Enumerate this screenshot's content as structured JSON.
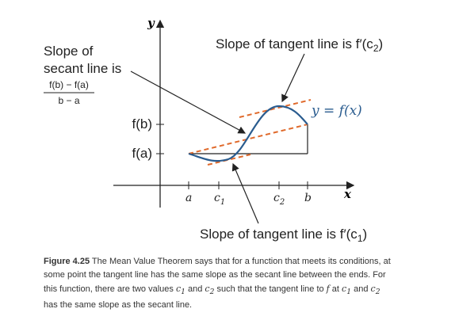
{
  "axes": {
    "x_label": "x",
    "y_label": "y"
  },
  "x_ticks": [
    [
      "a"
    ],
    [
      "c",
      "1"
    ],
    [
      "c",
      "2"
    ],
    [
      "b"
    ]
  ],
  "y_ticks": [
    "f(b)",
    "f(a)"
  ],
  "curve_label": "y = f(x)",
  "secant_note": {
    "line1": "Slope of",
    "line2": "secant line is",
    "numerator": "f(b) − f(a)",
    "denominator": "b − a"
  },
  "tangent_note_top": [
    "Slope of tangent line is f′(c",
    "2",
    ")"
  ],
  "tangent_note_bottom": [
    "Slope of tangent line is f′(c",
    "1",
    ")"
  ],
  "caption": [
    "Figure 4.25",
    " The Mean Value Theorem says that for a function that meets its conditions, at some point the tangent line has the same slope as the secant line between the ends. For this function, there are two values ",
    "c",
    "1",
    " and ",
    "c",
    "2",
    " such that the tangent line to ",
    "f",
    " at ",
    "c",
    "1",
    " and ",
    "c",
    "2",
    " has the same slope as the secant line."
  ]
}
